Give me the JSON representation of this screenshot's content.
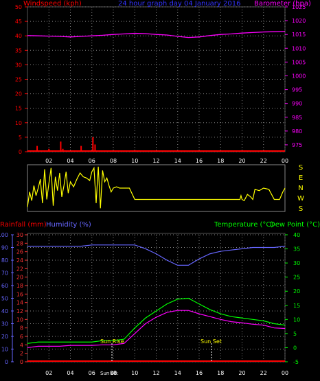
{
  "colors": {
    "wind": "#ff0000",
    "title": "#3333ff",
    "baro": "#ff00ff",
    "dir": "#ffff00",
    "rain": "#ff0000",
    "humidity": "#6666ff",
    "temp": "#00ff00",
    "dew": "#ff00ff",
    "axis_left": "#ff3333",
    "axis_pct": "#6666ff",
    "axis_temp": "#00ff00",
    "grid": "#888888",
    "label": "#ffffff"
  },
  "top": {
    "title": "24 hour graph day  04 January 2016",
    "left_label": "Windspeed (kph)",
    "right_label": "Barometer (hpa)"
  },
  "bottom": {
    "rain_label": "Rainfall (mm)",
    "humidity_label": "Humidity (%)",
    "temp_label": "Temperature (°C)",
    "dew_label": "Dew Point (°C)"
  },
  "sun": {
    "rise_label": "Sun Rise",
    "set_label": "Sun Set",
    "x_label": "Sun 08:"
  },
  "chart_data": [
    {
      "type": "line",
      "title": "24 hour graph day  04 January 2016",
      "xlabel": "",
      "ylabel": "Windspeed (kph)",
      "y2label": "Barometer (hpa)",
      "x_ticks": [
        "02",
        "04",
        "06",
        "08",
        "10",
        "12",
        "14",
        "16",
        "18",
        "20",
        "22",
        "00"
      ],
      "ylim": [
        0,
        50
      ],
      "y_ticks": [
        0,
        5,
        10,
        15,
        20,
        25,
        30,
        35,
        40,
        45,
        50
      ],
      "y2lim": [
        972.5,
        1025
      ],
      "y2_ticks": [
        975,
        980,
        985,
        990,
        995,
        1000,
        1005,
        1010,
        1015,
        1020,
        1025
      ],
      "series": [
        {
          "name": "Barometer (hpa)",
          "axis": "right",
          "x": [
            0,
            1,
            2,
            3,
            4,
            5,
            6,
            7,
            8,
            9,
            10,
            11,
            12,
            13,
            14,
            15,
            16,
            17,
            18,
            19,
            20,
            21,
            22,
            23,
            24
          ],
          "values": [
            1014.6,
            1014.5,
            1014.4,
            1014.3,
            1014.1,
            1014.3,
            1014.5,
            1014.7,
            1015.0,
            1015.2,
            1015.4,
            1015.3,
            1015.0,
            1014.8,
            1014.3,
            1013.9,
            1014.1,
            1014.6,
            1015.0,
            1015.2,
            1015.5,
            1015.7,
            1015.9,
            1016.0,
            1016.1
          ]
        },
        {
          "name": "Windspeed (kph)",
          "axis": "left",
          "style": "bars",
          "x": [
            0.9,
            2.0,
            3.1,
            3.3,
            5.0,
            6.1,
            6.3
          ],
          "values": [
            2.0,
            1.0,
            3.5,
            1.0,
            2.0,
            5.0,
            2.5
          ]
        }
      ]
    },
    {
      "type": "line",
      "title": "",
      "xlabel": "",
      "ylabel": "",
      "y_ticks": [
        "S",
        "E",
        "N",
        "W",
        "S"
      ],
      "series": [
        {
          "name": "",
          "x": [
            0,
            0.2,
            0.4,
            0.6,
            0.8,
            1.0,
            1.2,
            1.4,
            1.6,
            1.8,
            2.0,
            2.2,
            2.4,
            2.6,
            2.8,
            3.0,
            3.2,
            3.4,
            3.6,
            3.8,
            4.0,
            4.3,
            4.6,
            4.9,
            5.2,
            5.5,
            5.8,
            6.0,
            6.2,
            6.4,
            6.6,
            6.8,
            7.0,
            7.2,
            7.4,
            7.6,
            7.8,
            8.0,
            8.3,
            8.6,
            9.0,
            9.5,
            10,
            11,
            12,
            13,
            14,
            15,
            16,
            17,
            18,
            19,
            19.8,
            19.9,
            20.0,
            20.2,
            20.5,
            20.8,
            21.0,
            21.2,
            21.6,
            22.0,
            22.5,
            23.0,
            23.5,
            23.8,
            24.0
          ],
          "values": [
            30,
            150,
            80,
            200,
            120,
            180,
            250,
            60,
            330,
            90,
            220,
            340,
            40,
            270,
            160,
            300,
            110,
            200,
            310,
            140,
            230,
            190,
            250,
            300,
            270,
            260,
            240,
            310,
            340,
            60,
            350,
            20,
            320,
            230,
            260,
            200,
            150,
            180,
            190,
            180,
            180,
            180,
            90,
            90,
            90,
            90,
            90,
            90,
            90,
            90,
            90,
            90,
            90,
            120,
            90,
            80,
            130,
            110,
            90,
            170,
            160,
            180,
            170,
            90,
            90,
            150,
            180
          ]
        }
      ]
    },
    {
      "type": "line",
      "title": "",
      "xlabel": "",
      "ylabel": "Rainfall (mm) / Humidity (%)",
      "y2label": "Temperature (°C) / Dew Point (°C)",
      "x_ticks": [
        "02",
        "04",
        "06",
        "08",
        "10",
        "12",
        "14",
        "16",
        "18",
        "20",
        "22",
        "00"
      ],
      "ylim": [
        0,
        100
      ],
      "y_ticks": [
        0,
        10,
        20,
        30,
        40,
        50,
        60,
        70,
        80,
        90,
        100
      ],
      "rain_ticks": [
        0,
        2,
        4,
        6,
        8,
        10,
        12,
        14,
        16,
        18,
        20,
        22,
        24,
        26,
        28,
        30
      ],
      "y2lim": [
        -5,
        40
      ],
      "y2_ticks": [
        -5,
        0,
        5,
        10,
        15,
        20,
        25,
        30,
        35,
        40
      ],
      "series": [
        {
          "name": "Humidity (%)",
          "axis": "left",
          "x": [
            0,
            1,
            2,
            3,
            4,
            5,
            6,
            7,
            8,
            9,
            10,
            11,
            12,
            13,
            14,
            15,
            16,
            17,
            18,
            19,
            20,
            21,
            22,
            23,
            24
          ],
          "values": [
            91,
            91,
            91,
            91,
            91,
            91,
            92,
            92,
            92,
            92,
            92,
            89,
            85,
            80,
            76,
            76,
            81,
            85,
            87,
            88,
            89,
            90,
            90,
            90,
            91
          ]
        },
        {
          "name": "Temperature (°C)",
          "axis": "right",
          "x": [
            0,
            1,
            2,
            3,
            4,
            5,
            6,
            7,
            8,
            9,
            10,
            11,
            12,
            13,
            14,
            15,
            16,
            17,
            18,
            19,
            20,
            21,
            22,
            23,
            24
          ],
          "values": [
            1.5,
            2.0,
            2.0,
            2.0,
            2.0,
            2.0,
            2.0,
            2.5,
            2.5,
            3.0,
            7.0,
            10.5,
            13.0,
            15.5,
            17.2,
            17.5,
            15.5,
            13.5,
            12.0,
            11.0,
            10.5,
            10.0,
            9.5,
            8.5,
            8.0
          ]
        },
        {
          "name": "Dew Point (°C)",
          "axis": "right",
          "x": [
            0,
            1,
            2,
            3,
            4,
            5,
            6,
            7,
            8,
            9,
            10,
            11,
            12,
            13,
            14,
            15,
            16,
            17,
            18,
            19,
            20,
            21,
            22,
            23,
            24
          ],
          "values": [
            0.0,
            0.5,
            0.5,
            0.5,
            0.8,
            0.8,
            0.8,
            1.0,
            1.0,
            1.5,
            5.0,
            8.5,
            10.8,
            12.5,
            13.2,
            13.2,
            12.0,
            11.0,
            10.0,
            9.2,
            8.8,
            8.3,
            8.0,
            7.0,
            6.8
          ]
        },
        {
          "name": "Rainfall (mm)",
          "axis": "rain",
          "x": [
            0,
            24
          ],
          "values": [
            0,
            0
          ]
        }
      ]
    }
  ]
}
